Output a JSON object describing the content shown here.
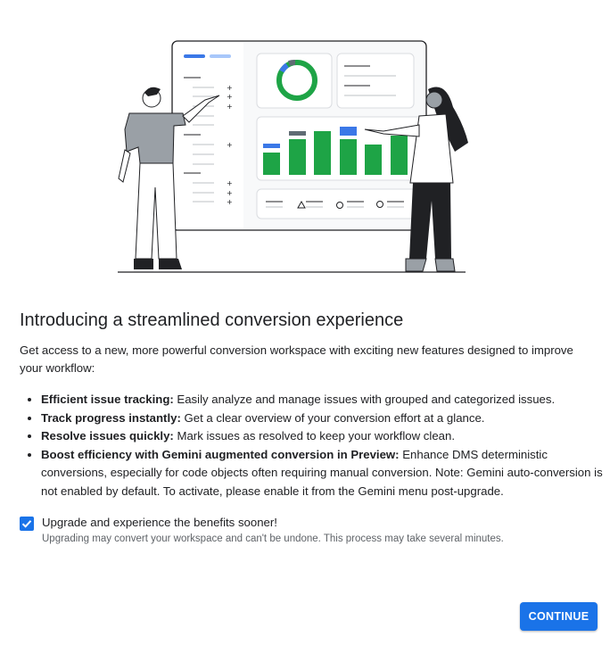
{
  "illustration": {
    "name": "dashboard-presentation-illustration",
    "colors": {
      "green": "#1ea446",
      "blue": "#3b78e7",
      "light_blue": "#a8c7fa",
      "gray": "#5f6b73"
    }
  },
  "dialog": {
    "title": "Introducing a streamlined conversion experience",
    "intro": "Get access to a new, more powerful conversion workspace with exciting new features designed to improve your workflow:",
    "features": [
      {
        "label": "Efficient issue tracking:",
        "text": " Easily analyze and manage issues with grouped and categorized issues."
      },
      {
        "label": "Track progress instantly:",
        "text": " Get a clear overview of your conversion effort at a glance."
      },
      {
        "label": "Resolve issues quickly:",
        "text": " Mark issues as resolved to keep your workflow clean."
      },
      {
        "label": "Boost efficiency with Gemini augmented conversion in Preview:",
        "text": " Enhance DMS deterministic conversions, especially for code objects often requiring manual conversion. Note: Gemini auto-conversion is not enabled by default. To activate, please enable it from the Gemini menu post-upgrade."
      }
    ],
    "checkbox": {
      "label": "Upgrade and experience the benefits sooner!",
      "hint": "Upgrading may convert your workspace and can't be undone. This process may take several minutes.",
      "checked": true,
      "color": "#1a73e8"
    },
    "continue_label": "CONTINUE"
  }
}
